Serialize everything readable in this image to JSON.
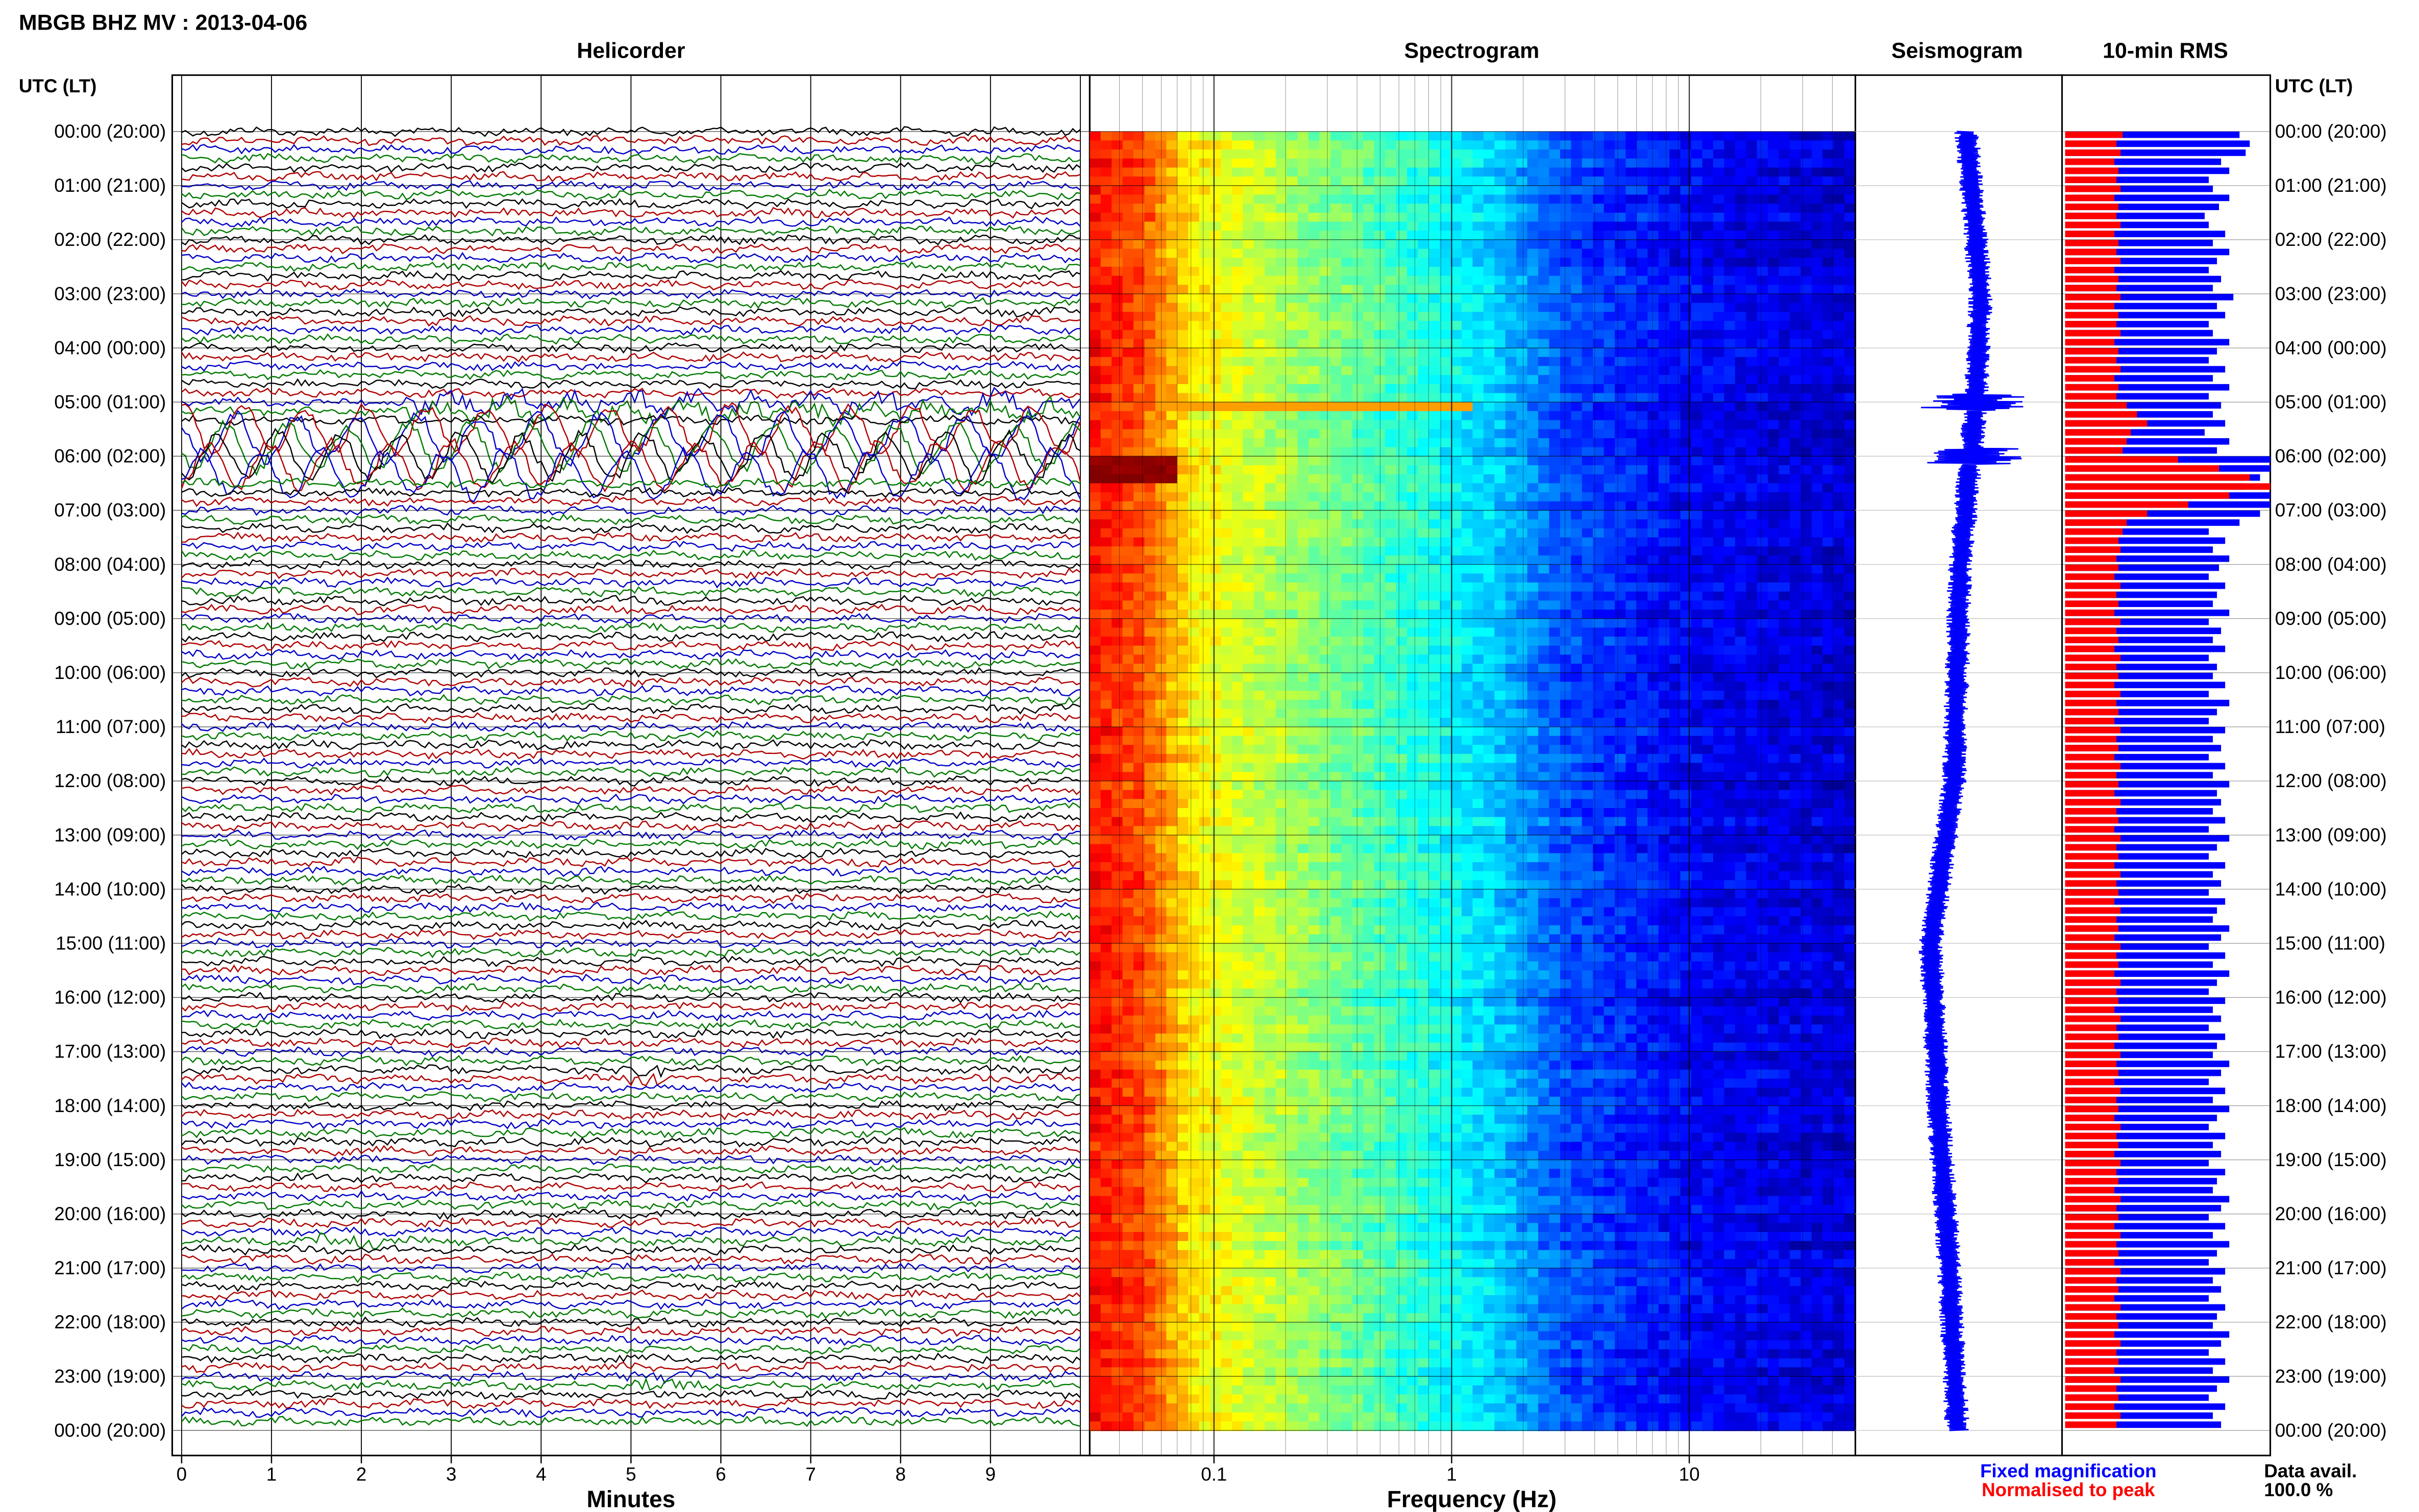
{
  "title": "MBGB BHZ MV : 2013-04-06",
  "time_axis": {
    "header": "UTC (LT)",
    "labels": [
      "00:00 (20:00)",
      "01:00 (21:00)",
      "02:00 (22:00)",
      "03:00 (23:00)",
      "04:00 (00:00)",
      "05:00 (01:00)",
      "06:00 (02:00)",
      "07:00 (03:00)",
      "08:00 (04:00)",
      "09:00 (05:00)",
      "10:00 (06:00)",
      "11:00 (07:00)",
      "12:00 (08:00)",
      "13:00 (09:00)",
      "14:00 (10:00)",
      "15:00 (11:00)",
      "16:00 (12:00)",
      "17:00 (13:00)",
      "18:00 (14:00)",
      "19:00 (15:00)",
      "20:00 (16:00)",
      "21:00 (17:00)",
      "22:00 (18:00)",
      "23:00 (19:00)",
      "00:00 (20:00)"
    ]
  },
  "panels": {
    "helicorder": {
      "title": "Helicorder",
      "xlabel": "Minutes",
      "ticks": [
        "0",
        "1",
        "2",
        "3",
        "4",
        "5",
        "6",
        "7",
        "8",
        "9"
      ]
    },
    "spectrogram": {
      "title": "Spectrogram",
      "xlabel": "Frequency (Hz)",
      "ticks": [
        "0.1",
        "1",
        "10"
      ],
      "scale": "log"
    },
    "seismogram": {
      "title": "Seismogram"
    },
    "rms": {
      "title": "10-min RMS"
    }
  },
  "legend": {
    "fixed": "Fixed magnification",
    "normalised": "Normalised to peak",
    "avail_label": "Data avail.",
    "avail_value": "100.0 %"
  },
  "colors": {
    "trace_cycle": [
      "#000000",
      "#b00000",
      "#0000c8",
      "#007a00"
    ],
    "fixed": "#0000ff",
    "normalised": "#ff0000",
    "spectrogram_low": "#00008c",
    "spectrogram_high": "#c80000"
  },
  "chart_data": [
    {
      "type": "line",
      "name": "helicorder",
      "title": "Helicorder",
      "xlabel": "Minutes",
      "xlim": [
        0,
        10
      ],
      "rows": 144,
      "rows_per_hour": 6,
      "ylim_hours": [
        0,
        24
      ],
      "events": [
        {
          "hour_range": [
            4.9,
            5.2
          ],
          "minute_range": [
            2.5,
            10
          ],
          "amplitude": "moderate"
        },
        {
          "hour_range": [
            5.5,
            6.4
          ],
          "minute_range": [
            0,
            10
          ],
          "amplitude": "large"
        },
        {
          "hour_range": [
            17.3,
            17.5
          ],
          "minute_range": [
            4.8,
            5.4
          ],
          "amplitude": "small"
        },
        {
          "hour_range": [
            20.4,
            20.5
          ],
          "minute_range": [
            1.5,
            2.2
          ],
          "amplitude": "small"
        },
        {
          "hour_range": [
            23.0,
            23.2
          ],
          "minute_range": [
            4.8,
            5.8
          ],
          "amplitude": "small"
        }
      ]
    },
    {
      "type": "heatmap",
      "name": "spectrogram",
      "title": "Spectrogram",
      "xlabel": "Frequency (Hz)",
      "xscale": "log",
      "xlim": [
        0.03,
        50
      ],
      "ylim_hours": [
        0,
        24
      ],
      "colormap": "jet",
      "description_profile": [
        {
          "freq": 0.03,
          "level": 0.86
        },
        {
          "freq": 0.05,
          "level": 0.8
        },
        {
          "freq": 0.08,
          "level": 0.64
        },
        {
          "freq": 0.2,
          "level": 0.54
        },
        {
          "freq": 0.5,
          "level": 0.45
        },
        {
          "freq": 1.5,
          "level": 0.33
        },
        {
          "freq": 3,
          "level": 0.2
        },
        {
          "freq": 10,
          "level": 0.12
        },
        {
          "freq": 50,
          "level": 0.08
        }
      ],
      "hot_spot": {
        "hour_range": [
          5.9,
          6.4
        ],
        "freq_range": [
          0.03,
          0.07
        ]
      }
    },
    {
      "type": "line",
      "name": "seismogram",
      "title": "Seismogram",
      "ylim_hours": [
        0,
        24
      ],
      "spikes_hours": [
        5.0,
        6.0
      ]
    },
    {
      "type": "bar",
      "name": "10-min RMS",
      "title": "10-min RMS",
      "ylim_hours": [
        0,
        24
      ],
      "series": [
        {
          "name": "Fixed magnification",
          "color": "#0000ff"
        },
        {
          "name": "Normalised to peak",
          "color": "#ff0000"
        }
      ],
      "fixed_values": [
        0.85,
        0.9,
        0.88,
        0.76,
        0.8,
        0.7,
        0.72,
        0.8,
        0.75,
        0.68,
        0.7,
        0.78,
        0.72,
        0.8,
        0.74,
        0.7,
        0.76,
        0.72,
        0.82,
        0.74,
        0.78,
        0.7,
        0.72,
        0.8,
        0.74,
        0.7,
        0.78,
        0.72,
        0.8,
        0.7,
        0.76,
        0.72,
        0.78,
        0.68,
        0.8,
        0.74,
        1.0,
        1.0,
        0.95,
        0.88,
        1.0,
        1.0,
        0.95,
        0.85,
        0.7,
        0.78,
        0.72,
        0.8,
        0.75,
        0.7,
        0.78,
        0.74,
        0.72,
        0.8,
        0.7,
        0.76,
        0.72,
        0.78,
        0.7,
        0.74,
        0.72,
        0.78,
        0.7,
        0.8,
        0.74,
        0.7,
        0.78,
        0.72,
        0.76,
        0.7,
        0.78,
        0.72,
        0.8,
        0.74,
        0.76,
        0.72,
        0.78,
        0.7,
        0.8,
        0.74,
        0.7,
        0.78,
        0.72,
        0.76,
        0.7,
        0.78,
        0.74,
        0.72,
        0.8,
        0.76,
        0.7,
        0.78,
        0.72,
        0.8,
        0.74,
        0.7,
        0.78,
        0.72,
        0.76,
        0.7,
        0.78,
        0.74,
        0.72,
        0.8,
        0.76,
        0.7,
        0.78,
        0.72,
        0.8,
        0.74,
        0.7,
        0.78,
        0.72,
        0.76,
        0.7,
        0.78,
        0.74,
        0.72,
        0.8,
        0.76,
        0.7,
        0.78,
        0.72,
        0.8,
        0.74,
        0.7,
        0.78,
        0.72,
        0.76,
        0.7,
        0.78,
        0.74,
        0.72,
        0.8,
        0.76,
        0.7,
        0.78,
        0.72,
        0.8,
        0.74,
        0.7,
        0.78,
        0.72,
        0.76
      ],
      "normalised_values": [
        0.28,
        0.25,
        0.27,
        0.24,
        0.26,
        0.25,
        0.27,
        0.24,
        0.26,
        0.25,
        0.27,
        0.24,
        0.26,
        0.25,
        0.27,
        0.24,
        0.26,
        0.25,
        0.27,
        0.24,
        0.26,
        0.25,
        0.27,
        0.24,
        0.26,
        0.25,
        0.27,
        0.24,
        0.26,
        0.25,
        0.3,
        0.35,
        0.4,
        0.32,
        0.3,
        0.28,
        0.55,
        0.75,
        0.9,
        1.0,
        0.8,
        0.6,
        0.4,
        0.3,
        0.28,
        0.26,
        0.27,
        0.25,
        0.26,
        0.24,
        0.27,
        0.25,
        0.26,
        0.24,
        0.27,
        0.25,
        0.26,
        0.24,
        0.27,
        0.25,
        0.26,
        0.24,
        0.27,
        0.25,
        0.26,
        0.24,
        0.27,
        0.25,
        0.26,
        0.24,
        0.27,
        0.25,
        0.26,
        0.24,
        0.27,
        0.25,
        0.26,
        0.24,
        0.27,
        0.25,
        0.26,
        0.24,
        0.27,
        0.25,
        0.26,
        0.24,
        0.27,
        0.25,
        0.26,
        0.24,
        0.27,
        0.25,
        0.26,
        0.24,
        0.27,
        0.25,
        0.26,
        0.24,
        0.27,
        0.25,
        0.26,
        0.24,
        0.27,
        0.25,
        0.26,
        0.24,
        0.27,
        0.25,
        0.26,
        0.24,
        0.27,
        0.25,
        0.26,
        0.24,
        0.27,
        0.25,
        0.26,
        0.24,
        0.27,
        0.25,
        0.26,
        0.24,
        0.27,
        0.25,
        0.26,
        0.24,
        0.27,
        0.25,
        0.26,
        0.24,
        0.27,
        0.25,
        0.26,
        0.24,
        0.27,
        0.25,
        0.26,
        0.24,
        0.27,
        0.25,
        0.26,
        0.24,
        0.27,
        0.25
      ]
    }
  ]
}
